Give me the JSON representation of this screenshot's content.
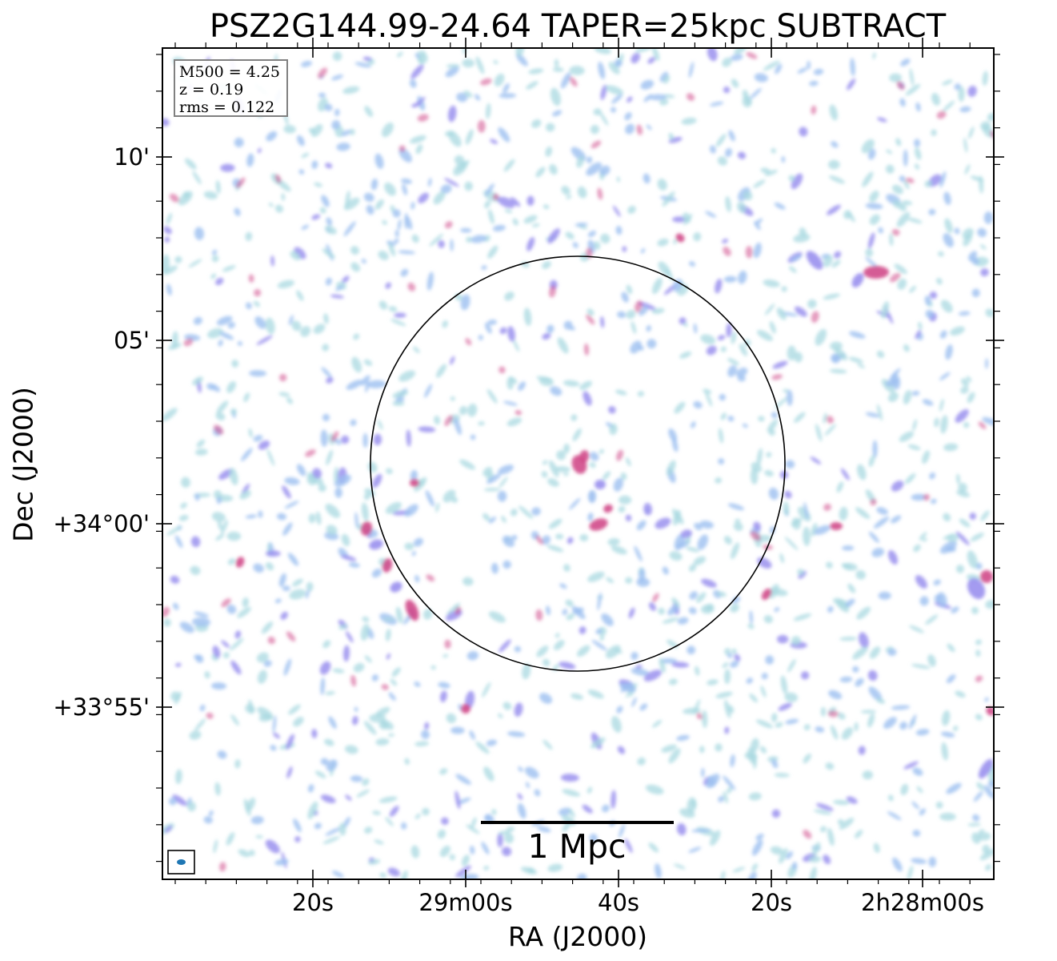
{
  "title": "PSZ2G144.99-24.64 TAPER=25kpc SUBTRACT",
  "xlabel": "RA (J2000)",
  "ylabel": "Dec (J2000)",
  "y_ticks": [
    "10'",
    "05'",
    "+34°00'",
    "+33°55'"
  ],
  "x_ticks": [
    "20s",
    "29m00s",
    "40s",
    "20s",
    "2h28m00s"
  ],
  "info": {
    "mass": "M500 = 4.25",
    "redshift": "z = 0.19",
    "rms": "rms = 0.122"
  },
  "scale_bar": {
    "label": "1 Mpc"
  },
  "colors": {
    "faint": "#a8d8e0",
    "low": "#9cbff0",
    "mid": "#9a90ee",
    "high": "#d04a8a",
    "frame": "#000000"
  }
}
